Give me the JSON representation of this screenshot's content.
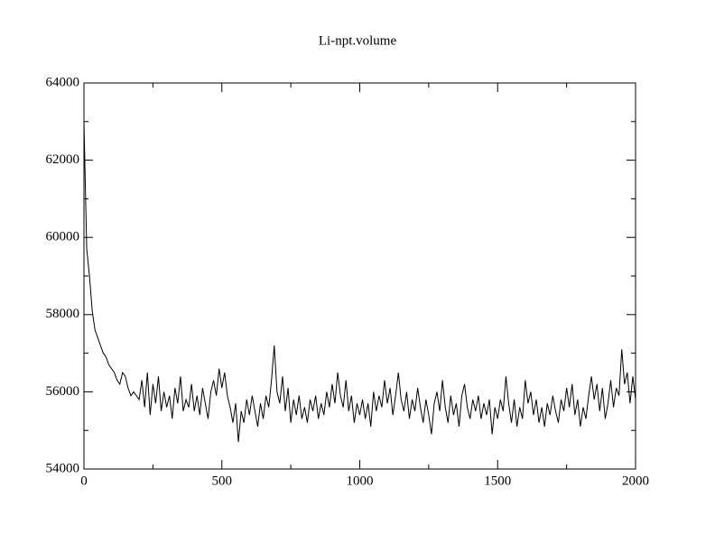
{
  "chart_data": {
    "type": "line",
    "title": "Li-npt.volume",
    "color": "#000000",
    "xlim": [
      0,
      2000
    ],
    "xticks": [
      0,
      500,
      1000,
      1500,
      2000
    ],
    "xminorticks": [
      250,
      750,
      1250,
      1750
    ],
    "ylim": [
      54000,
      64000
    ],
    "yticks": [
      54000,
      56000,
      58000,
      60000,
      62000,
      64000
    ],
    "yminorticks": [
      55000,
      57000,
      59000,
      61000,
      63000
    ],
    "x": [
      0,
      10,
      20,
      30,
      40,
      50,
      60,
      70,
      80,
      90,
      100,
      110,
      120,
      130,
      140,
      150,
      160,
      170,
      180,
      190,
      200,
      210,
      220,
      230,
      240,
      250,
      260,
      270,
      280,
      290,
      300,
      310,
      320,
      330,
      340,
      350,
      360,
      370,
      380,
      390,
      400,
      410,
      420,
      430,
      440,
      450,
      460,
      470,
      480,
      490,
      500,
      510,
      520,
      530,
      540,
      550,
      560,
      570,
      580,
      590,
      600,
      610,
      620,
      630,
      640,
      650,
      660,
      670,
      680,
      690,
      700,
      710,
      720,
      730,
      740,
      750,
      760,
      770,
      780,
      790,
      800,
      810,
      820,
      830,
      840,
      850,
      860,
      870,
      880,
      890,
      900,
      910,
      920,
      930,
      940,
      950,
      960,
      970,
      980,
      990,
      1000,
      1010,
      1020,
      1030,
      1040,
      1050,
      1060,
      1070,
      1080,
      1090,
      1100,
      1110,
      1120,
      1130,
      1140,
      1150,
      1160,
      1170,
      1180,
      1190,
      1200,
      1210,
      1220,
      1230,
      1240,
      1250,
      1260,
      1270,
      1280,
      1290,
      1300,
      1310,
      1320,
      1330,
      1340,
      1350,
      1360,
      1370,
      1380,
      1390,
      1400,
      1410,
      1420,
      1430,
      1440,
      1450,
      1460,
      1470,
      1480,
      1490,
      1500,
      1510,
      1520,
      1530,
      1540,
      1550,
      1560,
      1570,
      1580,
      1590,
      1600,
      1610,
      1620,
      1630,
      1640,
      1650,
      1660,
      1670,
      1680,
      1690,
      1700,
      1710,
      1720,
      1730,
      1740,
      1750,
      1760,
      1770,
      1780,
      1790,
      1800,
      1810,
      1820,
      1830,
      1840,
      1850,
      1860,
      1870,
      1880,
      1890,
      1900,
      1910,
      1920,
      1930,
      1940,
      1950,
      1960,
      1970,
      1980,
      1990,
      2000
    ],
    "values": [
      63000,
      59700,
      59000,
      58100,
      57600,
      57400,
      57200,
      57000,
      56900,
      56700,
      56600,
      56500,
      56300,
      56200,
      56500,
      56400,
      56100,
      55900,
      56000,
      55900,
      55800,
      56300,
      55600,
      56500,
      55400,
      56200,
      55700,
      56400,
      55500,
      56000,
      55600,
      55900,
      55300,
      56100,
      55700,
      56400,
      55500,
      55800,
      55600,
      56200,
      55500,
      55900,
      55400,
      56100,
      55700,
      55300,
      56000,
      56300,
      55900,
      56600,
      56100,
      56500,
      55900,
      55600,
      55200,
      55700,
      54700,
      55500,
      55200,
      55800,
      55400,
      55900,
      55500,
      55100,
      55700,
      55300,
      55900,
      55600,
      56300,
      57200,
      56000,
      55700,
      56400,
      55500,
      56100,
      55200,
      55800,
      55400,
      55900,
      55300,
      55600,
      55200,
      55800,
      55500,
      55900,
      55300,
      55700,
      55400,
      56000,
      55600,
      56200,
      55700,
      56500,
      55900,
      55600,
      56300,
      55500,
      55900,
      55200,
      55700,
      55400,
      55800,
      55300,
      55700,
      55100,
      56000,
      55500,
      55900,
      55600,
      56300,
      55700,
      56100,
      55400,
      55900,
      56500,
      55800,
      55500,
      56000,
      55300,
      55800,
      55500,
      56100,
      55600,
      55200,
      55800,
      55400,
      54900,
      55700,
      56000,
      55500,
      56300,
      55600,
      55200,
      55900,
      55400,
      55700,
      55100,
      55900,
      56200,
      55600,
      55300,
      55800,
      55500,
      55900,
      55300,
      55700,
      55400,
      55800,
      54900,
      55600,
      55300,
      55800,
      55500,
      56400,
      55700,
      55200,
      55800,
      55100,
      55600,
      55300,
      56300,
      55700,
      56000,
      55400,
      55800,
      55200,
      55600,
      55100,
      55700,
      55400,
      55900,
      55500,
      55200,
      55800,
      55500,
      56100,
      55600,
      56200,
      55400,
      55800,
      55100,
      55600,
      55300,
      55900,
      56400,
      55800,
      56200,
      55500,
      56100,
      55300,
      55700,
      56300,
      55600,
      56100,
      55900,
      57100,
      56200,
      56500,
      55700,
      56400,
      55800
    ]
  }
}
